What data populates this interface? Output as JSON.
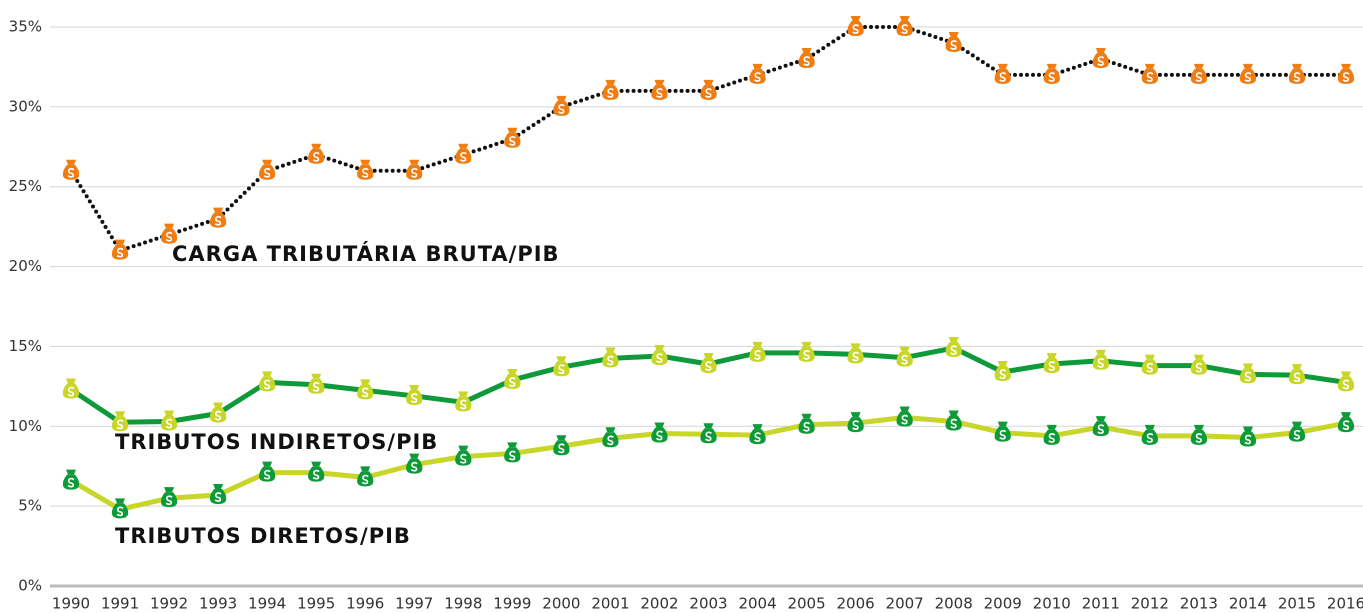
{
  "chart_data": {
    "type": "line",
    "categories": [
      "1990",
      "1991",
      "1992",
      "1993",
      "1994",
      "1995",
      "1996",
      "1997",
      "1998",
      "1999",
      "2000",
      "2001",
      "2002",
      "2003",
      "2004",
      "2005",
      "2006",
      "2007",
      "2008",
      "2009",
      "2010",
      "2011",
      "2012",
      "2013",
      "2014",
      "2015",
      "2016"
    ],
    "series": [
      {
        "name": "CARGA TRIBUTÁRIA BRUTA/PIB",
        "color": "#111111",
        "marker_color": "#f07d12",
        "values": [
          26,
          21,
          22,
          23,
          26,
          27,
          26,
          26,
          27,
          28,
          30,
          31,
          31,
          31,
          32,
          33,
          35,
          35,
          34,
          32,
          32,
          33,
          32,
          32,
          32,
          32,
          32
        ]
      },
      {
        "name": "TRIBUTOS INDIRETOS/PIB",
        "color": "#0f9a3a",
        "marker_color": "#c8d62a",
        "values": [
          12.3,
          10.25,
          10.3,
          10.8,
          12.75,
          12.6,
          12.25,
          11.9,
          11.5,
          12.9,
          13.7,
          14.25,
          14.4,
          13.9,
          14.6,
          14.6,
          14.5,
          14.3,
          14.9,
          13.4,
          13.9,
          14.1,
          13.8,
          13.8,
          13.25,
          13.2,
          12.75
        ]
      },
      {
        "name": "TRIBUTOS DIRETOS/PIB",
        "color": "#c8d62a",
        "marker_color": "#0f9a3a",
        "values": [
          6.6,
          4.8,
          5.5,
          5.7,
          7.1,
          7.1,
          6.8,
          7.6,
          8.1,
          8.3,
          8.75,
          9.25,
          9.55,
          9.5,
          9.45,
          10.1,
          10.2,
          10.55,
          10.3,
          9.6,
          9.4,
          9.95,
          9.4,
          9.4,
          9.3,
          9.6,
          10.2
        ]
      }
    ],
    "ylim": [
      0,
      35
    ],
    "yticks": [
      {
        "value": 0,
        "label": "0%"
      },
      {
        "value": 5,
        "label": "5%"
      },
      {
        "value": 10,
        "label": "10%"
      },
      {
        "value": 15,
        "label": "15%"
      },
      {
        "value": 20,
        "label": "20%"
      },
      {
        "value": 25,
        "label": "25%"
      },
      {
        "value": 30,
        "label": "30%"
      },
      {
        "value": 35,
        "label": "35%"
      }
    ],
    "grid": true
  }
}
